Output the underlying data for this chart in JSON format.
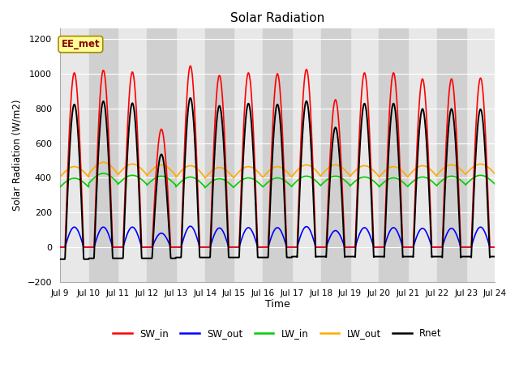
{
  "title": "Solar Radiation",
  "xlabel": "Time",
  "ylabel": "Solar Radiation (W/m2)",
  "ylim": [
    -200,
    1260
  ],
  "yticks": [
    -200,
    0,
    200,
    400,
    600,
    800,
    1000,
    1200
  ],
  "xlim_days": [
    9,
    24
  ],
  "xtick_days": [
    9,
    10,
    11,
    12,
    13,
    14,
    15,
    16,
    17,
    18,
    19,
    20,
    21,
    22,
    23,
    24
  ],
  "xtick_labels": [
    "Jul 9",
    "Jul 10",
    "Jul 11",
    "Jul 12",
    "Jul 13",
    "Jul 14",
    "Jul 15",
    "Jul 16",
    "Jul 17",
    "Jul 18",
    "Jul 19",
    "Jul 20",
    "Jul 21",
    "Jul 22",
    "Jul 23",
    "Jul 24"
  ],
  "annotation": "EE_met",
  "series": {
    "SW_in": {
      "color": "#ff0000",
      "linewidth": 1.2
    },
    "SW_out": {
      "color": "#0000ff",
      "linewidth": 1.2
    },
    "LW_in": {
      "color": "#00cc00",
      "linewidth": 1.2
    },
    "LW_out": {
      "color": "#ffaa00",
      "linewidth": 1.2
    },
    "Rnet": {
      "color": "#000000",
      "linewidth": 1.4
    }
  },
  "legend_labels": [
    "SW_in",
    "SW_out",
    "LW_in",
    "LW_out",
    "Rnet"
  ],
  "legend_colors": [
    "#ff0000",
    "#0000ff",
    "#00cc00",
    "#ffaa00",
    "#000000"
  ],
  "background_color": "#ffffff",
  "plot_bg_color": "#e8e8e8",
  "grid_color": "#ffffff",
  "band_color": "#d0d0d0",
  "num_days": 15,
  "start_day": 9,
  "points_per_day": 144,
  "SW_in_peaks": [
    1005,
    1020,
    1010,
    680,
    1045,
    990,
    1005,
    1000,
    1025,
    850,
    1005,
    1005,
    970,
    970,
    975
  ],
  "SW_out_peaks": [
    115,
    115,
    115,
    80,
    120,
    110,
    112,
    112,
    118,
    95,
    112,
    112,
    108,
    108,
    115
  ],
  "LW_in_base": [
    345,
    368,
    362,
    357,
    347,
    342,
    347,
    347,
    352,
    357,
    352,
    347,
    352,
    357,
    362
  ],
  "LW_in_amp": [
    52,
    57,
    52,
    52,
    57,
    52,
    52,
    52,
    57,
    52,
    52,
    52,
    52,
    52,
    52
  ],
  "LW_out_base": [
    402,
    422,
    417,
    412,
    402,
    397,
    402,
    402,
    407,
    412,
    407,
    402,
    407,
    417,
    422
  ],
  "LW_out_amp": [
    62,
    67,
    62,
    62,
    67,
    62,
    62,
    62,
    67,
    62,
    62,
    62,
    62,
    57,
    57
  ],
  "Rnet_night": [
    -70,
    -65,
    -65,
    -65,
    -60,
    -60,
    -60,
    -60,
    -55,
    -55,
    -55,
    -55,
    -55,
    -55,
    -55
  ]
}
